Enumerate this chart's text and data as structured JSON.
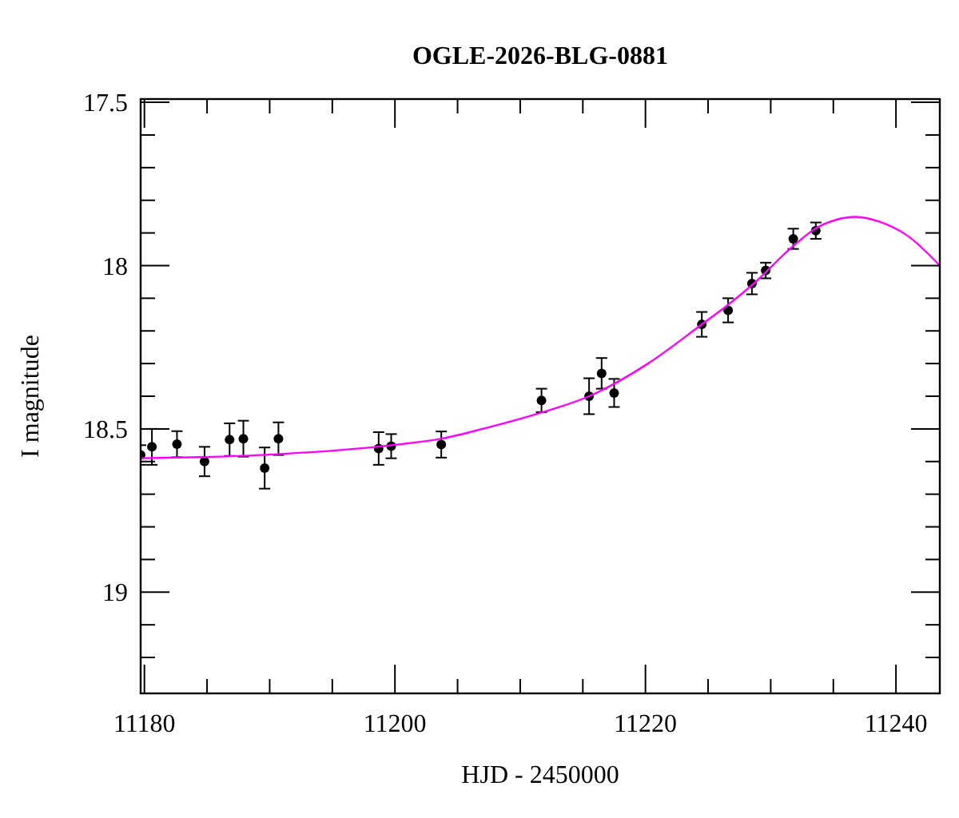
{
  "chart_data": {
    "type": "scatter",
    "title": "OGLE-2026-BLG-0881",
    "xlabel": "HJD - 2450000",
    "ylabel": "I magnitude",
    "xlim": [
      11179.7,
      11243.5
    ],
    "ylim": [
      19.31,
      17.49
    ],
    "xticks": [
      11180,
      {
        "value": 11185,
        "label": null
      },
      {
        "value": 11190,
        "label": null
      },
      {
        "value": 11195,
        "label": null
      },
      11200,
      {
        "value": 11205,
        "label": null
      },
      {
        "value": 11210,
        "label": null
      },
      {
        "value": 11215,
        "label": null
      },
      11220,
      {
        "value": 11225,
        "label": null
      },
      {
        "value": 11230,
        "label": null
      },
      {
        "value": 11235,
        "label": null
      },
      11240
    ],
    "yticks": [
      17.5,
      {
        "value": 17.6,
        "label": null
      },
      {
        "value": 17.7,
        "label": null
      },
      {
        "value": 17.8,
        "label": null
      },
      {
        "value": 17.9,
        "label": null
      },
      18,
      {
        "value": 18.1,
        "label": null
      },
      {
        "value": 18.2,
        "label": null
      },
      {
        "value": 18.3,
        "label": null
      },
      {
        "value": 18.4,
        "label": null
      },
      18.5,
      {
        "value": 18.6,
        "label": null
      },
      {
        "value": 18.7,
        "label": null
      },
      {
        "value": 18.8,
        "label": null
      },
      {
        "value": 18.9,
        "label": null
      },
      19,
      {
        "value": 19.1,
        "label": null
      },
      {
        "value": 19.2,
        "label": null
      }
    ],
    "grid": false,
    "marker": "circle",
    "series": [
      {
        "color": "#000000",
        "x": [
          11179.7,
          11180.6,
          11182.6,
          11184.8,
          11186.8,
          11187.9,
          11189.6,
          11190.7,
          11198.7,
          11199.7,
          11203.7,
          11211.7,
          11215.5,
          11216.5,
          11217.5,
          11224.5,
          11226.6,
          11228.5,
          11229.6,
          11231.8,
          11233.6
        ],
        "values": [
          18.58,
          18.555,
          18.547,
          18.6,
          18.533,
          18.53,
          18.62,
          18.53,
          18.56,
          18.553,
          18.548,
          18.413,
          18.4,
          18.33,
          18.39,
          18.18,
          18.137,
          18.055,
          18.015,
          17.918,
          17.893
        ],
        "errors": [
          0.03,
          0.055,
          0.04,
          0.045,
          0.05,
          0.055,
          0.063,
          0.05,
          0.05,
          0.037,
          0.04,
          0.036,
          0.055,
          0.047,
          0.043,
          0.038,
          0.037,
          0.033,
          0.024,
          0.031,
          0.025
        ]
      },
      {
        "type": "line",
        "color": "#ff00ff",
        "line_style": "solid",
        "marker": "none",
        "x": [
          11179.7,
          11189.3,
          11199.7,
          11203.7,
          11207,
          11211.7,
          11215.5,
          11220.2,
          11224.5,
          11226.6,
          11228.5,
          11231.8,
          11233.6,
          11235.2,
          11236.8,
          11238.7,
          11240.9,
          11243.5
        ],
        "values": [
          18.59,
          18.58,
          18.55,
          18.53,
          18.5,
          18.45,
          18.4,
          18.3,
          18.18,
          18.12,
          18.06,
          17.94,
          17.886,
          17.86,
          17.851,
          17.866,
          17.908,
          18.0
        ]
      }
    ]
  }
}
